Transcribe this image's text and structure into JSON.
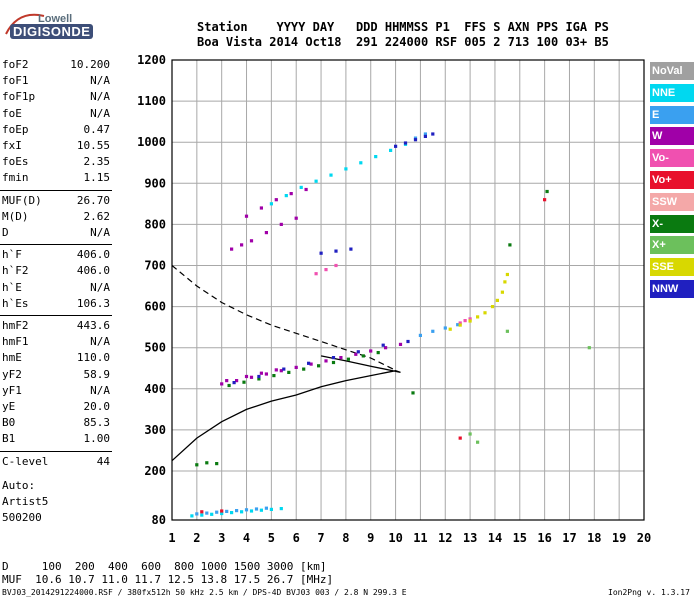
{
  "logo": {
    "line1": "Lowell",
    "line2": "DIGISONDE"
  },
  "header": {
    "line1": "Station    YYYY DAY   DDD HHMMSS P1  FFS S AXN PPS IGA PS",
    "line2": "Boa Vista 2014 Oct18  291 224000 RSF 005 2 713 100 03+ B5"
  },
  "params": [
    {
      "group": 1,
      "key": "foF2",
      "value": "10.200"
    },
    {
      "group": 1,
      "key": "foF1",
      "value": "N/A"
    },
    {
      "group": 1,
      "key": "foF1p",
      "value": "N/A"
    },
    {
      "group": 1,
      "key": "foE",
      "value": "N/A"
    },
    {
      "group": 1,
      "key": "foEp",
      "value": "0.47"
    },
    {
      "group": 1,
      "key": "fxI",
      "value": "10.55"
    },
    {
      "group": 1,
      "key": "foEs",
      "value": "2.35"
    },
    {
      "group": 1,
      "key": "fmin",
      "value": "1.15"
    },
    {
      "group": 2,
      "key": "MUF(D)",
      "value": "26.70"
    },
    {
      "group": 2,
      "key": "M(D)",
      "value": "2.62"
    },
    {
      "group": 2,
      "key": "D",
      "value": "N/A"
    },
    {
      "group": 3,
      "key": "h`F",
      "value": "406.0"
    },
    {
      "group": 3,
      "key": "h`F2",
      "value": "406.0"
    },
    {
      "group": 3,
      "key": "h`E",
      "value": "N/A"
    },
    {
      "group": 3,
      "key": "h`Es",
      "value": "106.3"
    },
    {
      "group": 4,
      "key": "hmF2",
      "value": "443.6"
    },
    {
      "group": 4,
      "key": "hmF1",
      "value": "N/A"
    },
    {
      "group": 4,
      "key": "hmE",
      "value": "110.0"
    },
    {
      "group": 4,
      "key": "yF2",
      "value": "58.9"
    },
    {
      "group": 4,
      "key": "yF1",
      "value": "N/A"
    },
    {
      "group": 4,
      "key": "yE",
      "value": "20.0"
    },
    {
      "group": 4,
      "key": "B0",
      "value": "85.3"
    },
    {
      "group": 4,
      "key": "B1",
      "value": "1.00"
    },
    {
      "group": 5,
      "key": "C-level",
      "value": "44"
    }
  ],
  "autoscaling": {
    "line1": "Auto:",
    "line2": "Artist5",
    "line3": "500200"
  },
  "footer": {
    "d_row": "D     100  200  400  600  800 1000 1500 3000 [km]",
    "muf_row": "MUF  10.6 10.7 11.0 11.7 12.5 13.8 17.5 26.7 [MHz]",
    "info": "BVJ03_2014291224000.RSF / 380fx512h 50 kHz 2.5 km / DPS-4D BVJ03 003 / 2.8 N 299.3 E",
    "version": "Ion2Png v. 1.3.17"
  },
  "legend": [
    {
      "label": "NoVal",
      "color": "#a0a0a0"
    },
    {
      "label": "NNE",
      "color": "#00d8f0"
    },
    {
      "label": "E",
      "color": "#3aa0f0"
    },
    {
      "label": "W",
      "color": "#a000a8"
    },
    {
      "label": "Vo-",
      "color": "#f050b0"
    },
    {
      "label": "Vo+",
      "color": "#e8102c"
    },
    {
      "label": "SSW",
      "color": "#f4a8a8"
    },
    {
      "label": "X-",
      "color": "#0a7a10"
    },
    {
      "label": "X+",
      "color": "#6cc05c"
    },
    {
      "label": "SSE",
      "color": "#d8d800"
    },
    {
      "label": "NNW",
      "color": "#2020c0"
    }
  ],
  "chart_data": {
    "type": "scatter",
    "title": "",
    "xlabel": "",
    "ylabel": "",
    "xlim": [
      1,
      20
    ],
    "ylim": [
      80,
      1200
    ],
    "x_ticks": [
      "1",
      "2",
      "3",
      "4",
      "5",
      "6",
      "7",
      "8",
      "9",
      "10",
      "11",
      "12",
      "13",
      "14",
      "15",
      "16",
      "17",
      "18",
      "19",
      "20"
    ],
    "y_ticks": [
      "80",
      "200",
      "300",
      "400",
      "500",
      "600",
      "700",
      "800",
      "900",
      "1000",
      "1100",
      "1200"
    ],
    "grid": true,
    "series": [
      {
        "name": "W",
        "color": "#a000a8",
        "points": [
          [
            3.0,
            412
          ],
          [
            3.6,
            420
          ],
          [
            4.2,
            428
          ],
          [
            4.8,
            436
          ],
          [
            5.4,
            444
          ],
          [
            6.0,
            452
          ],
          [
            6.6,
            460
          ],
          [
            7.2,
            468
          ],
          [
            7.8,
            476
          ],
          [
            8.4,
            484
          ],
          [
            9.0,
            492
          ],
          [
            9.6,
            500
          ],
          [
            10.2,
            508
          ],
          [
            3.2,
            420
          ],
          [
            4.0,
            430
          ],
          [
            4.6,
            438
          ],
          [
            5.2,
            446
          ],
          [
            4.2,
            760
          ],
          [
            4.8,
            780
          ],
          [
            5.4,
            800
          ],
          [
            6.0,
            815
          ],
          [
            4.0,
            820
          ],
          [
            4.6,
            840
          ],
          [
            5.2,
            860
          ],
          [
            5.8,
            875
          ],
          [
            6.4,
            885
          ],
          [
            3.4,
            740
          ],
          [
            3.8,
            750
          ]
        ]
      },
      {
        "name": "NNE",
        "color": "#00d8f0",
        "points": [
          [
            5.0,
            850
          ],
          [
            5.6,
            870
          ],
          [
            6.2,
            890
          ],
          [
            6.8,
            905
          ],
          [
            7.4,
            920
          ],
          [
            8.0,
            935
          ],
          [
            8.6,
            950
          ],
          [
            9.2,
            965
          ],
          [
            9.8,
            980
          ],
          [
            10.4,
            995
          ],
          [
            1.8,
            90
          ],
          [
            2.2,
            92
          ],
          [
            2.6,
            94
          ],
          [
            3.0,
            96
          ],
          [
            3.4,
            98
          ],
          [
            3.8,
            100
          ],
          [
            4.2,
            102
          ],
          [
            4.6,
            104
          ],
          [
            5.0,
            106
          ],
          [
            5.4,
            108
          ]
        ]
      },
      {
        "name": "E",
        "color": "#3aa0f0",
        "points": [
          [
            2.0,
            95
          ],
          [
            2.4,
            97
          ],
          [
            2.8,
            99
          ],
          [
            3.2,
            101
          ],
          [
            3.6,
            103
          ],
          [
            4.0,
            105
          ],
          [
            4.4,
            107
          ],
          [
            4.8,
            109
          ],
          [
            11.0,
            530
          ],
          [
            11.5,
            540
          ],
          [
            12.0,
            548
          ],
          [
            12.5,
            556
          ],
          [
            11.2,
            1020
          ],
          [
            10.8,
            1010
          ]
        ]
      },
      {
        "name": "Vo-",
        "color": "#f050b0",
        "points": [
          [
            6.8,
            680
          ],
          [
            7.2,
            690
          ],
          [
            7.6,
            700
          ],
          [
            12.6,
            560
          ],
          [
            13.0,
            570
          ],
          [
            12.8,
            566
          ]
        ]
      },
      {
        "name": "X-",
        "color": "#0a7a10",
        "points": [
          [
            3.3,
            408
          ],
          [
            3.9,
            416
          ],
          [
            4.5,
            424
          ],
          [
            5.1,
            432
          ],
          [
            5.7,
            440
          ],
          [
            6.3,
            448
          ],
          [
            6.9,
            456
          ],
          [
            7.5,
            464
          ],
          [
            8.1,
            472
          ],
          [
            8.7,
            480
          ],
          [
            9.3,
            488
          ],
          [
            2.0,
            215
          ],
          [
            2.4,
            220
          ],
          [
            2.8,
            218
          ],
          [
            16.1,
            880
          ],
          [
            14.6,
            750
          ],
          [
            10.7,
            390
          ]
        ]
      },
      {
        "name": "SSE",
        "color": "#d8d800",
        "points": [
          [
            12.2,
            545
          ],
          [
            12.6,
            555
          ],
          [
            13.0,
            565
          ],
          [
            13.3,
            575
          ],
          [
            13.6,
            585
          ],
          [
            13.9,
            600
          ],
          [
            14.1,
            615
          ],
          [
            14.3,
            635
          ],
          [
            14.4,
            660
          ],
          [
            14.5,
            678
          ]
        ]
      },
      {
        "name": "NNW",
        "color": "#2020c0",
        "points": [
          [
            10.0,
            990
          ],
          [
            10.4,
            998
          ],
          [
            10.8,
            1006
          ],
          [
            11.2,
            1014
          ],
          [
            11.5,
            1020
          ],
          [
            7.0,
            730
          ],
          [
            7.6,
            735
          ],
          [
            8.2,
            740
          ],
          [
            3.5,
            415
          ],
          [
            4.5,
            430
          ],
          [
            5.5,
            448
          ],
          [
            6.5,
            462
          ],
          [
            7.5,
            476
          ],
          [
            8.5,
            490
          ],
          [
            9.5,
            506
          ],
          [
            10.5,
            515
          ]
        ]
      },
      {
        "name": "Vo+",
        "color": "#e8102c",
        "points": [
          [
            12.6,
            280
          ],
          [
            16.0,
            860
          ],
          [
            2.2,
            100
          ],
          [
            3.0,
            102
          ]
        ]
      },
      {
        "name": "X+",
        "color": "#6cc05c",
        "points": [
          [
            13.0,
            290
          ],
          [
            13.3,
            270
          ],
          [
            14.5,
            540
          ],
          [
            17.8,
            500
          ]
        ]
      }
    ],
    "profiles": {
      "solid": [
        [
          1.0,
          225
        ],
        [
          2.0,
          280
        ],
        [
          3.0,
          320
        ],
        [
          4.0,
          350
        ],
        [
          5.0,
          370
        ],
        [
          6.0,
          385
        ],
        [
          7.0,
          405
        ],
        [
          8.0,
          420
        ],
        [
          9.0,
          432
        ],
        [
          10.0,
          444
        ],
        [
          10.2,
          440
        ],
        [
          9.0,
          455
        ],
        [
          8.0,
          468
        ],
        [
          7.0,
          480
        ]
      ],
      "dashed": [
        [
          1.0,
          700
        ],
        [
          2.0,
          650
        ],
        [
          3.0,
          610
        ],
        [
          4.0,
          580
        ],
        [
          5.0,
          555
        ],
        [
          6.0,
          535
        ],
        [
          7.0,
          515
        ],
        [
          8.0,
          495
        ],
        [
          9.0,
          475
        ],
        [
          10.0,
          445
        ]
      ]
    }
  }
}
